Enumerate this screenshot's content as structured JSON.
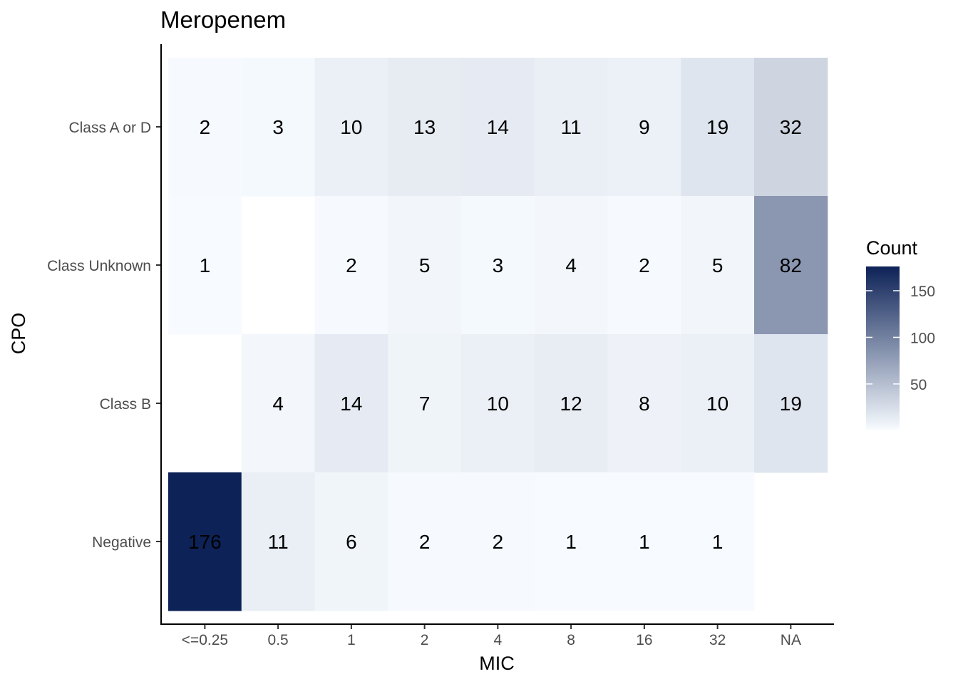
{
  "chart_data": {
    "type": "heatmap",
    "title": "Meropenem",
    "xlabel": "MIC",
    "ylabel": "CPO",
    "x_categories": [
      "<=0.25",
      "0.5",
      "1",
      "2",
      "4",
      "8",
      "16",
      "32",
      "NA"
    ],
    "y_categories": [
      "Class A or D",
      "Class Unknown",
      "Class B",
      "Negative"
    ],
    "values": [
      [
        2,
        3,
        10,
        13,
        14,
        11,
        9,
        19,
        32
      ],
      [
        1,
        null,
        2,
        5,
        3,
        4,
        2,
        5,
        82
      ],
      [
        null,
        4,
        14,
        7,
        10,
        12,
        8,
        10,
        19
      ],
      [
        176,
        11,
        6,
        2,
        2,
        1,
        1,
        1,
        null
      ]
    ],
    "legend": {
      "title": "Count",
      "placement": "right",
      "ticks": [
        50,
        100,
        150
      ],
      "range": [
        1,
        176
      ],
      "low_color": "#f7fbff",
      "high_color": "#0d2257"
    },
    "grid": false
  }
}
